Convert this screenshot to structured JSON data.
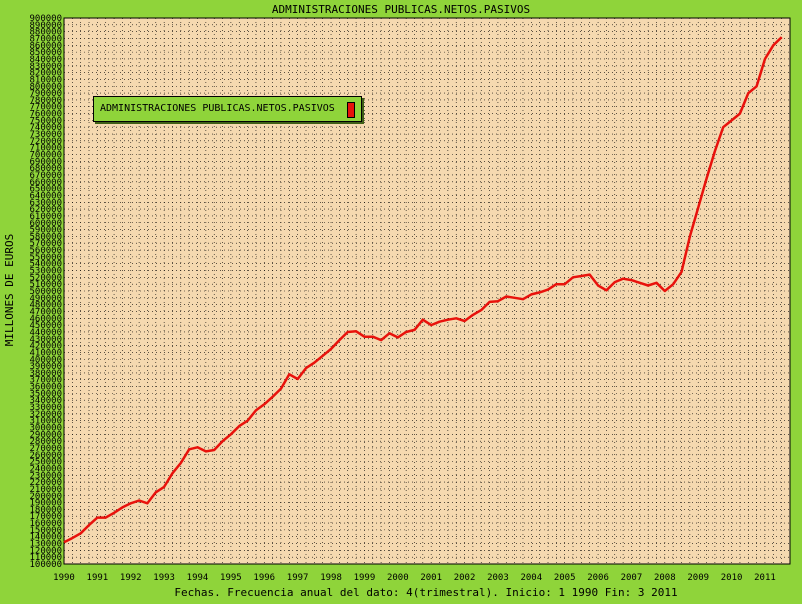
{
  "chart_data": {
    "type": "line",
    "title": "ADMINISTRACIONES PUBLICAS.NETOS.PASIVOS",
    "ylabel": "MILLONES DE EUROS",
    "xlabel": "Fechas. Frecuencia anual del dato: 4(trimestral). Inicio: 1 1990 Fin: 3 2011",
    "ylim": [
      100000,
      900000
    ],
    "ytick_step": 10000,
    "xlim": [
      1990.0,
      2011.75
    ],
    "x_tick_labels": [
      "1990",
      "1991",
      "1992",
      "1993",
      "1994",
      "1995",
      "1996",
      "1997",
      "1998",
      "1999",
      "2000",
      "2001",
      "2002",
      "2003",
      "2004",
      "2005",
      "2006",
      "2007",
      "2008",
      "2009",
      "2010",
      "2011"
    ],
    "grid": true,
    "legend": {
      "position": "top-left",
      "entries": [
        "ADMINISTRACIONES PUBLICAS.NETOS.PASIVOS"
      ]
    },
    "colors": {
      "background": "#8fd43a",
      "plot_area": "#f5d9b0",
      "series": "#e8120c"
    },
    "series": [
      {
        "name": "ADMINISTRACIONES PUBLICAS.NETOS.PASIVOS",
        "x": [
          "1990-Q1",
          "1990-Q2",
          "1990-Q3",
          "1990-Q4",
          "1991-Q1",
          "1991-Q2",
          "1991-Q3",
          "1991-Q4",
          "1992-Q1",
          "1992-Q2",
          "1992-Q3",
          "1992-Q4",
          "1993-Q1",
          "1993-Q2",
          "1993-Q3",
          "1993-Q4",
          "1994-Q1",
          "1994-Q2",
          "1994-Q3",
          "1994-Q4",
          "1995-Q1",
          "1995-Q2",
          "1995-Q3",
          "1995-Q4",
          "1996-Q1",
          "1996-Q2",
          "1996-Q3",
          "1996-Q4",
          "1997-Q1",
          "1997-Q2",
          "1997-Q3",
          "1997-Q4",
          "1998-Q1",
          "1998-Q2",
          "1998-Q3",
          "1998-Q4",
          "1999-Q1",
          "1999-Q2",
          "1999-Q3",
          "1999-Q4",
          "2000-Q1",
          "2000-Q2",
          "2000-Q3",
          "2000-Q4",
          "2001-Q1",
          "2001-Q2",
          "2001-Q3",
          "2001-Q4",
          "2002-Q1",
          "2002-Q2",
          "2002-Q3",
          "2002-Q4",
          "2003-Q1",
          "2003-Q2",
          "2003-Q3",
          "2003-Q4",
          "2004-Q1",
          "2004-Q2",
          "2004-Q3",
          "2004-Q4",
          "2005-Q1",
          "2005-Q2",
          "2005-Q3",
          "2005-Q4",
          "2006-Q1",
          "2006-Q2",
          "2006-Q3",
          "2006-Q4",
          "2007-Q1",
          "2007-Q2",
          "2007-Q3",
          "2007-Q4",
          "2008-Q1",
          "2008-Q2",
          "2008-Q3",
          "2008-Q4",
          "2009-Q1",
          "2009-Q2",
          "2009-Q3",
          "2009-Q4",
          "2010-Q1",
          "2010-Q2",
          "2010-Q3",
          "2010-Q4",
          "2011-Q1",
          "2011-Q2",
          "2011-Q3"
        ],
        "values": [
          132000,
          138000,
          145000,
          157000,
          168000,
          168000,
          175000,
          183000,
          189000,
          193000,
          189000,
          205000,
          213000,
          233000,
          248000,
          268000,
          271000,
          265000,
          267000,
          280000,
          290000,
          302000,
          310000,
          325000,
          334000,
          345000,
          357000,
          378000,
          371000,
          387000,
          395000,
          405000,
          415000,
          428000,
          440000,
          441000,
          433000,
          433000,
          428000,
          438000,
          432000,
          440000,
          443000,
          458000,
          450000,
          455000,
          458000,
          460000,
          456000,
          465000,
          472000,
          484000,
          485000,
          492000,
          490000,
          488000,
          495000,
          498000,
          502000,
          510000,
          510000,
          520000,
          522000,
          524000,
          508000,
          501000,
          513000,
          518000,
          516000,
          512000,
          508000,
          512000,
          500000,
          510000,
          528000,
          580000,
          622000,
          665000,
          705000,
          740000,
          750000,
          760000,
          790000,
          800000,
          840000,
          860000,
          872000
        ]
      }
    ]
  }
}
